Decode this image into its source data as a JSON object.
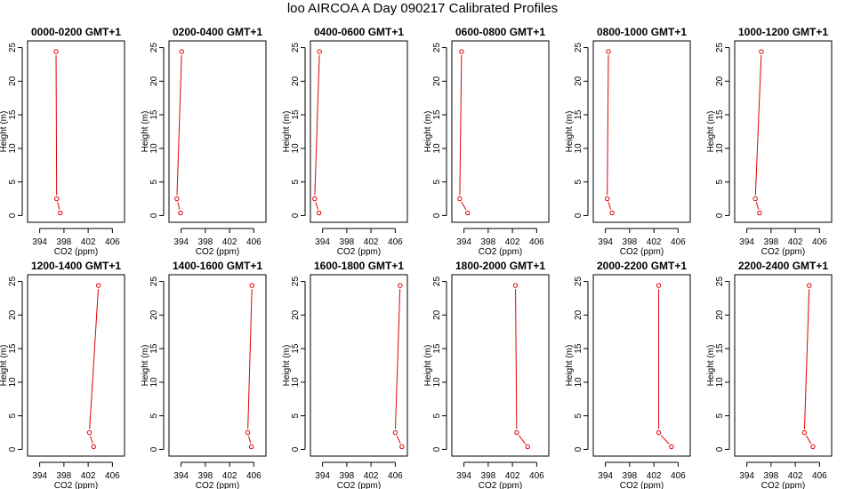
{
  "page": {
    "title": "loo AIRCOA A  Day 090217  Calibrated Profiles"
  },
  "colors": {
    "series": "#e00000",
    "axis": "#000000"
  },
  "chart_data": [
    {
      "type": "line",
      "title": "0000-0200 GMT+1",
      "xlabel": "CO2 (ppm)",
      "ylabel": "Height (m)",
      "xlim": [
        392,
        408
      ],
      "ylim": [
        -1,
        26
      ],
      "xticks": [
        "394",
        "398",
        "402",
        "406"
      ],
      "yticks": [
        "0",
        "5",
        "10",
        "15",
        "20",
        "25"
      ],
      "series": [
        {
          "x": [
            396.7,
            396.8,
            397.4
          ],
          "y": [
            24.4,
            2.5,
            0.4
          ]
        }
      ]
    },
    {
      "type": "line",
      "title": "0200-0400 GMT+1",
      "xlabel": "CO2 (ppm)",
      "ylabel": "Height (m)",
      "xlim": [
        392,
        408
      ],
      "ylim": [
        -1,
        26
      ],
      "xticks": [
        "394",
        "398",
        "402",
        "406"
      ],
      "yticks": [
        "0",
        "5",
        "10",
        "15",
        "20",
        "25"
      ],
      "series": [
        {
          "x": [
            394.1,
            393.3,
            393.9
          ],
          "y": [
            24.4,
            2.5,
            0.4
          ]
        }
      ]
    },
    {
      "type": "line",
      "title": "0400-0600 GMT+1",
      "xlabel": "CO2 (ppm)",
      "ylabel": "Height (m)",
      "xlim": [
        392,
        408
      ],
      "ylim": [
        -1,
        26
      ],
      "xticks": [
        "394",
        "398",
        "402",
        "406"
      ],
      "yticks": [
        "0",
        "5",
        "10",
        "15",
        "20",
        "25"
      ],
      "series": [
        {
          "x": [
            393.5,
            392.7,
            393.4
          ],
          "y": [
            24.4,
            2.5,
            0.4
          ]
        }
      ]
    },
    {
      "type": "line",
      "title": "0600-0800 GMT+1",
      "xlabel": "CO2 (ppm)",
      "ylabel": "Height (m)",
      "xlim": [
        392,
        408
      ],
      "ylim": [
        -1,
        26
      ],
      "xticks": [
        "394",
        "398",
        "402",
        "406"
      ],
      "yticks": [
        "0",
        "5",
        "10",
        "15",
        "20",
        "25"
      ],
      "series": [
        {
          "x": [
            393.6,
            393.3,
            394.6
          ],
          "y": [
            24.4,
            2.5,
            0.4
          ]
        }
      ]
    },
    {
      "type": "line",
      "title": "0800-1000 GMT+1",
      "xlabel": "CO2 (ppm)",
      "ylabel": "Height (m)",
      "xlim": [
        392,
        408
      ],
      "ylim": [
        -1,
        26
      ],
      "xticks": [
        "394",
        "398",
        "402",
        "406"
      ],
      "yticks": [
        "0",
        "5",
        "10",
        "15",
        "20",
        "25"
      ],
      "series": [
        {
          "x": [
            394.5,
            394.3,
            395.1
          ],
          "y": [
            24.4,
            2.5,
            0.4
          ]
        }
      ]
    },
    {
      "type": "line",
      "title": "1000-1200 GMT+1",
      "xlabel": "CO2 (ppm)",
      "ylabel": "Height (m)",
      "xlim": [
        392,
        408
      ],
      "ylim": [
        -1,
        26
      ],
      "xticks": [
        "394",
        "398",
        "402",
        "406"
      ],
      "yticks": [
        "0",
        "5",
        "10",
        "15",
        "20",
        "25"
      ],
      "series": [
        {
          "x": [
            396.4,
            395.4,
            396.1
          ],
          "y": [
            24.4,
            2.5,
            0.4
          ]
        }
      ]
    },
    {
      "type": "line",
      "title": "1200-1400 GMT+1",
      "xlabel": "CO2 (ppm)",
      "ylabel": "Height (m)",
      "xlim": [
        392,
        408
      ],
      "ylim": [
        -1,
        26
      ],
      "xticks": [
        "394",
        "398",
        "402",
        "406"
      ],
      "yticks": [
        "0",
        "5",
        "10",
        "15",
        "20",
        "25"
      ],
      "series": [
        {
          "x": [
            403.7,
            402.2,
            402.9
          ],
          "y": [
            24.4,
            2.5,
            0.4
          ]
        }
      ]
    },
    {
      "type": "line",
      "title": "1400-1600 GMT+1",
      "xlabel": "CO2 (ppm)",
      "ylabel": "Height (m)",
      "xlim": [
        392,
        408
      ],
      "ylim": [
        -1,
        26
      ],
      "xticks": [
        "394",
        "398",
        "402",
        "406"
      ],
      "yticks": [
        "0",
        "5",
        "10",
        "15",
        "20",
        "25"
      ],
      "series": [
        {
          "x": [
            405.7,
            405.0,
            405.6
          ],
          "y": [
            24.4,
            2.5,
            0.4
          ]
        }
      ]
    },
    {
      "type": "line",
      "title": "1600-1800 GMT+1",
      "xlabel": "CO2 (ppm)",
      "ylabel": "Height (m)",
      "xlim": [
        392,
        408
      ],
      "ylim": [
        -1,
        26
      ],
      "xticks": [
        "394",
        "398",
        "402",
        "406"
      ],
      "yticks": [
        "0",
        "5",
        "10",
        "15",
        "20",
        "25"
      ],
      "series": [
        {
          "x": [
            406.8,
            406.0,
            407.1
          ],
          "y": [
            24.4,
            2.5,
            0.4
          ]
        }
      ]
    },
    {
      "type": "line",
      "title": "1800-2000 GMT+1",
      "xlabel": "CO2 (ppm)",
      "ylabel": "Height (m)",
      "xlim": [
        392,
        408
      ],
      "ylim": [
        -1,
        26
      ],
      "xticks": [
        "394",
        "398",
        "402",
        "406"
      ],
      "yticks": [
        "0",
        "5",
        "10",
        "15",
        "20",
        "25"
      ],
      "series": [
        {
          "x": [
            402.5,
            402.7,
            404.5
          ],
          "y": [
            24.4,
            2.5,
            0.4
          ]
        }
      ]
    },
    {
      "type": "line",
      "title": "2000-2200 GMT+1",
      "xlabel": "CO2 (ppm)",
      "ylabel": "Height (m)",
      "xlim": [
        392,
        408
      ],
      "ylim": [
        -1,
        26
      ],
      "xticks": [
        "394",
        "398",
        "402",
        "406"
      ],
      "yticks": [
        "0",
        "5",
        "10",
        "15",
        "20",
        "25"
      ],
      "series": [
        {
          "x": [
            402.8,
            402.8,
            404.9
          ],
          "y": [
            24.4,
            2.5,
            0.4
          ]
        }
      ]
    },
    {
      "type": "line",
      "title": "2200-2400 GMT+1",
      "xlabel": "CO2 (ppm)",
      "ylabel": "Height (m)",
      "xlim": [
        392,
        408
      ],
      "ylim": [
        -1,
        26
      ],
      "xticks": [
        "394",
        "398",
        "402",
        "406"
      ],
      "yticks": [
        "0",
        "5",
        "10",
        "15",
        "20",
        "25"
      ],
      "series": [
        {
          "x": [
            404.3,
            403.5,
            404.9
          ],
          "y": [
            24.4,
            2.5,
            0.4
          ]
        }
      ]
    }
  ]
}
